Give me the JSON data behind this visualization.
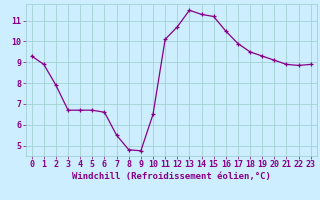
{
  "x": [
    0,
    1,
    2,
    3,
    4,
    5,
    6,
    7,
    8,
    9,
    10,
    11,
    12,
    13,
    14,
    15,
    16,
    17,
    18,
    19,
    20,
    21,
    22,
    23
  ],
  "y": [
    9.3,
    8.9,
    7.9,
    6.7,
    6.7,
    6.7,
    6.6,
    5.5,
    4.8,
    4.75,
    6.5,
    10.1,
    10.7,
    11.5,
    11.3,
    11.2,
    10.5,
    9.9,
    9.5,
    9.3,
    9.1,
    8.9,
    8.85,
    8.9
  ],
  "xlabel": "Windchill (Refroidissement éolien,°C)",
  "ylim": [
    4.5,
    11.8
  ],
  "xlim": [
    -0.5,
    23.5
  ],
  "yticks": [
    5,
    6,
    7,
    8,
    9,
    10,
    11
  ],
  "xticks": [
    0,
    1,
    2,
    3,
    4,
    5,
    6,
    7,
    8,
    9,
    10,
    11,
    12,
    13,
    14,
    15,
    16,
    17,
    18,
    19,
    20,
    21,
    22,
    23
  ],
  "line_color": "#880088",
  "marker_color": "#880088",
  "bg_color": "#cceeff",
  "grid_color": "#99cccc",
  "axis_label_color": "#880088",
  "tick_label_color": "#880088",
  "xlabel_fontsize": 6.5,
  "tick_fontsize": 6.0
}
